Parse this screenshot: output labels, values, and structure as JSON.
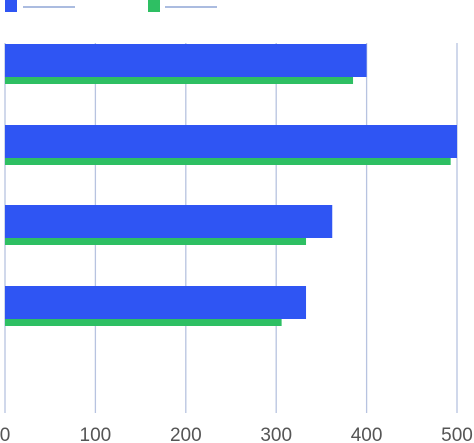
{
  "chart_data": {
    "type": "bar",
    "orientation": "horizontal",
    "categories": [
      "",
      "",
      "",
      ""
    ],
    "series": [
      {
        "values": [
          400,
          500,
          362,
          333
        ],
        "color": "#2f55f3"
      },
      {
        "values": [
          385,
          493,
          333,
          306
        ],
        "color": "#2ebf63"
      }
    ],
    "xlim": [
      0,
      500
    ],
    "x_ticks": [
      "0",
      "100",
      "200",
      "300",
      "400",
      "500"
    ],
    "grid": "vertical",
    "legend": "top-left",
    "title": "",
    "xlabel": "",
    "ylabel": ""
  }
}
